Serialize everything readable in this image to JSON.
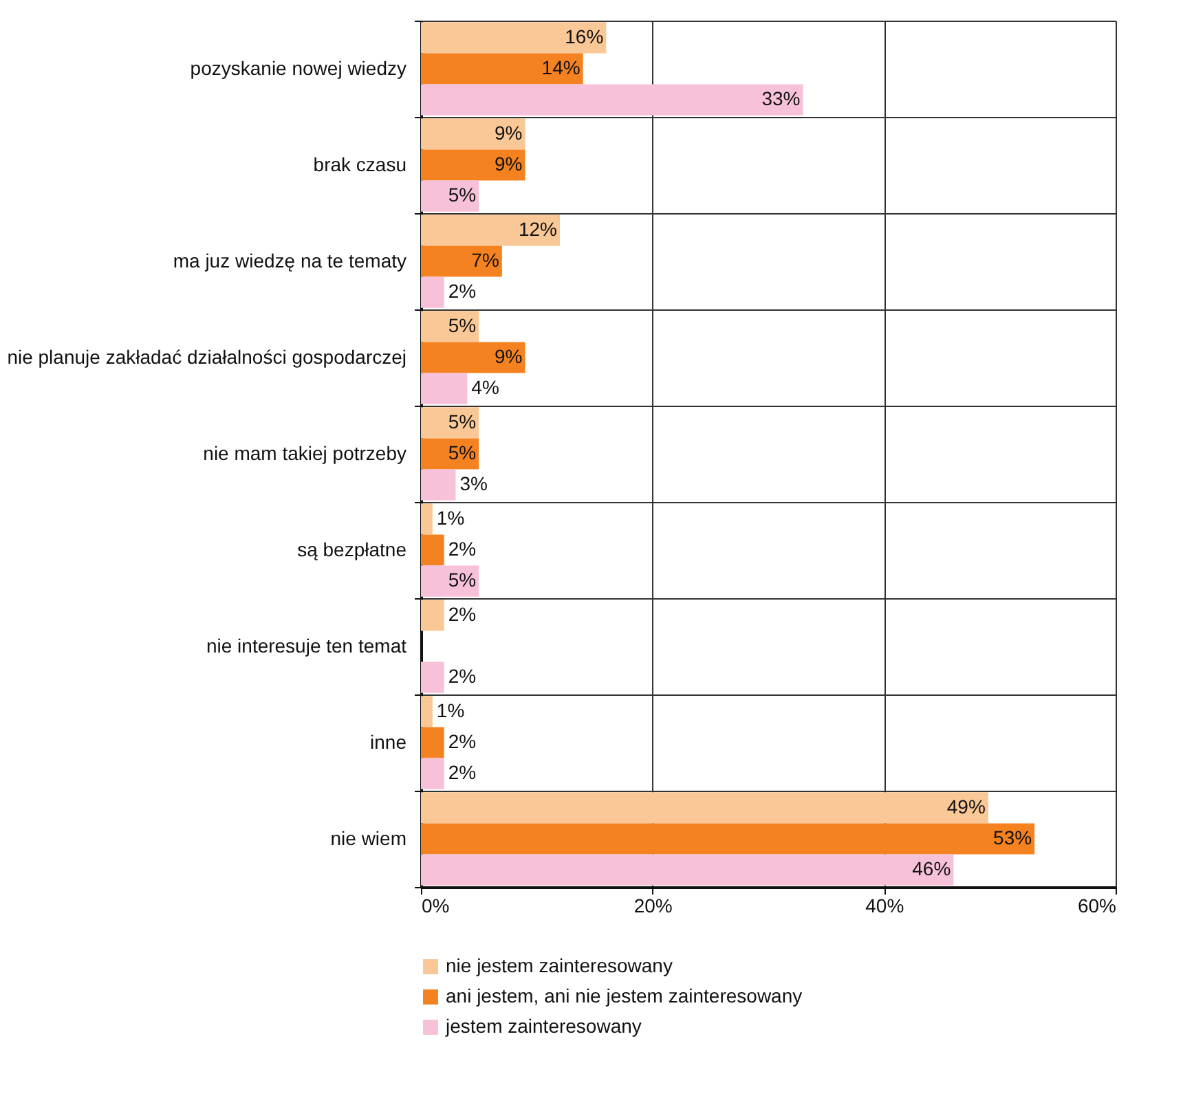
{
  "chart_data": {
    "type": "bar",
    "orientation": "horizontal",
    "categories": [
      "pozyskanie nowej wiedzy",
      "brak czasu",
      "ma juz wiedzę na te tematy",
      "nie planuje zakładać działalności gospodarczej",
      "nie mam takiej potrzeby",
      "są bezpłatne",
      "nie interesuje ten temat",
      "inne",
      "nie wiem"
    ],
    "series": [
      {
        "name": "nie jestem zainteresowany",
        "color": "#fac896",
        "values": [
          16,
          9,
          12,
          5,
          5,
          1,
          2,
          1,
          49
        ],
        "value_labels": [
          "16%",
          "9%",
          "12%",
          "5%",
          "5%",
          "1%",
          "2%",
          "1%",
          "49%"
        ]
      },
      {
        "name": "ani jestem, ani nie jestem zainteresowany",
        "color": "#f58220",
        "values": [
          14,
          9,
          7,
          9,
          5,
          2,
          null,
          2,
          53
        ],
        "value_labels": [
          "14%",
          "9%",
          "7%",
          "9%",
          "5%",
          "2%",
          null,
          "2%",
          "53%"
        ]
      },
      {
        "name": "jestem zainteresowany",
        "color": "#f7c1d9",
        "values": [
          33,
          5,
          2,
          4,
          3,
          5,
          2,
          2,
          46
        ],
        "value_labels": [
          "33%",
          "5%",
          "2%",
          "4%",
          "3%",
          "5%",
          "2%",
          "2%",
          "46%"
        ]
      }
    ],
    "xlim": [
      0,
      60
    ],
    "xticks": [
      {
        "value": 0,
        "label": "0%"
      },
      {
        "value": 20,
        "label": "20%"
      },
      {
        "value": 40,
        "label": "40%"
      },
      {
        "value": 60,
        "label": "60%"
      }
    ],
    "grid": true,
    "legend": "bottom"
  }
}
